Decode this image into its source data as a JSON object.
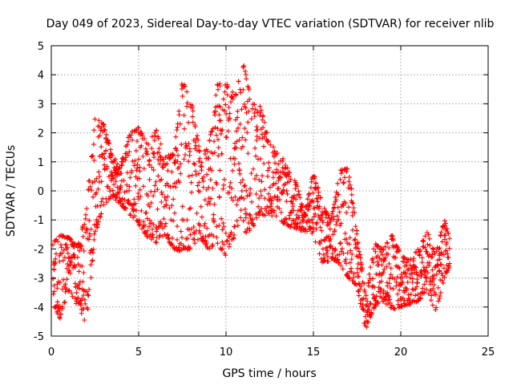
{
  "chart_data": {
    "type": "scatter",
    "title": "Day 049 of 2023, Sidereal Day-to-day VTEC variation (SDTVAR) for receiver nlib",
    "xlabel": "GPS time / hours",
    "ylabel": "SDTVAR / TECUs",
    "xlim": [
      0,
      25
    ],
    "ylim": [
      -5,
      5
    ],
    "xticks": [
      "0",
      "5",
      "10",
      "15",
      "20",
      "25"
    ],
    "yticks": [
      "-5",
      "-4",
      "-3",
      "-2",
      "-1",
      "0",
      "1",
      "2",
      "3",
      "4",
      "5"
    ],
    "grid": true,
    "marker": "+",
    "color": "#ff0000",
    "series": [
      {
        "name": "nlib",
        "envelope_x": [
          0.1,
          0.5,
          1.0,
          1.5,
          2.0,
          2.5,
          3.0,
          3.5,
          4.0,
          4.5,
          5.0,
          5.5,
          6.0,
          6.5,
          7.0,
          7.5,
          8.0,
          8.5,
          9.0,
          9.5,
          10.0,
          10.5,
          11.0,
          11.5,
          12.0,
          12.5,
          13.0,
          13.5,
          14.0,
          14.5,
          15.0,
          15.5,
          16.0,
          16.5,
          17.0,
          17.5,
          18.0,
          18.5,
          19.0,
          19.5,
          20.0,
          20.5,
          21.0,
          21.5,
          22.0,
          22.5,
          22.8
        ],
        "envelope_min": [
          -3.9,
          -4.4,
          -3.4,
          -4.0,
          -4.6,
          -1.5,
          -0.5,
          -0.2,
          -0.5,
          -0.8,
          -1.2,
          -1.6,
          -1.8,
          -1.5,
          -2.0,
          -2.1,
          -2.0,
          -1.6,
          -2.0,
          -1.8,
          -2.3,
          -1.7,
          -1.5,
          -1.3,
          -0.8,
          -0.9,
          -1.0,
          -1.2,
          -1.3,
          -1.4,
          -1.5,
          -2.5,
          -2.4,
          -2.5,
          -3.0,
          -3.3,
          -4.8,
          -4.0,
          -3.8,
          -4.1,
          -4.0,
          -3.9,
          -3.8,
          -3.4,
          -4.2,
          -3.0,
          -2.6
        ],
        "envelope_max": [
          -1.8,
          -1.5,
          -1.6,
          -1.9,
          -0.8,
          2.6,
          2.3,
          1.2,
          1.0,
          2.0,
          2.2,
          1.6,
          2.1,
          1.2,
          1.3,
          3.8,
          3.2,
          1.3,
          1.5,
          3.7,
          3.7,
          3.3,
          4.4,
          3.0,
          2.9,
          1.6,
          1.4,
          0.8,
          0.3,
          -0.8,
          0.7,
          -0.4,
          -1.0,
          0.7,
          0.8,
          -1.5,
          -3.5,
          -1.8,
          -2.0,
          -1.5,
          -2.2,
          -2.4,
          -2.0,
          -1.4,
          -2.2,
          -1.0,
          -1.6
        ]
      }
    ]
  }
}
